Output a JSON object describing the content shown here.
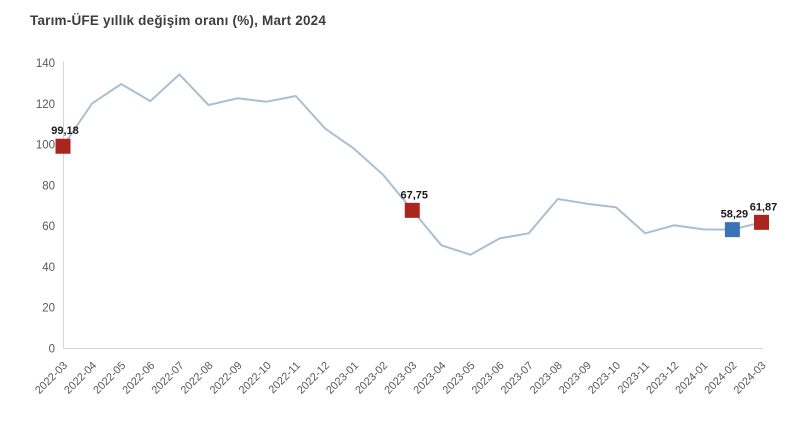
{
  "title": "Tarım-ÜFE yıllık değişim oranı (%), Mart 2024",
  "colors": {
    "line": "#a9bfd3",
    "marker_red": "#ab241e",
    "marker_blue": "#3a73b5",
    "axis": "#d6d6d6",
    "tick_text": "#595959",
    "title_text": "#3d3d3d",
    "data_label_text": "#1a1a1a",
    "background": "#ffffff"
  },
  "chart_data": {
    "type": "line",
    "title": "Tarım-ÜFE yıllık değişim oranı (%), Mart 2024",
    "xlabel": "",
    "ylabel": "",
    "ylim": [
      0,
      140
    ],
    "ytick_values": [
      0,
      20,
      40,
      60,
      80,
      100,
      120,
      140
    ],
    "grid": false,
    "legend": "none",
    "x": [
      "2022-03",
      "2022-04",
      "2022-05",
      "2022-06",
      "2022-07",
      "2022-08",
      "2022-09",
      "2022-10",
      "2022-11",
      "2022-12",
      "2023-01",
      "2023-02",
      "2023-03",
      "2023-04",
      "2023-05",
      "2023-06",
      "2023-07",
      "2023-08",
      "2023-09",
      "2023-10",
      "2023-11",
      "2023-12",
      "2024-01",
      "2024-02",
      "2024-03"
    ],
    "values": [
      99.18,
      120.2,
      129.7,
      121.3,
      134.4,
      119.4,
      122.7,
      121.0,
      123.8,
      108.0,
      98.0,
      85.2,
      67.75,
      50.6,
      46.0,
      54.0,
      56.5,
      73.3,
      71.0,
      69.3,
      56.5,
      60.4,
      58.4,
      58.29,
      61.87
    ],
    "labeled_points": [
      {
        "x": "2022-03",
        "label": "99,18",
        "marker": "red"
      },
      {
        "x": "2023-03",
        "label": "67,75",
        "marker": "red"
      },
      {
        "x": "2024-02",
        "label": "58,29",
        "marker": "blue"
      },
      {
        "x": "2024-03",
        "label": "61,87",
        "marker": "red"
      }
    ]
  }
}
